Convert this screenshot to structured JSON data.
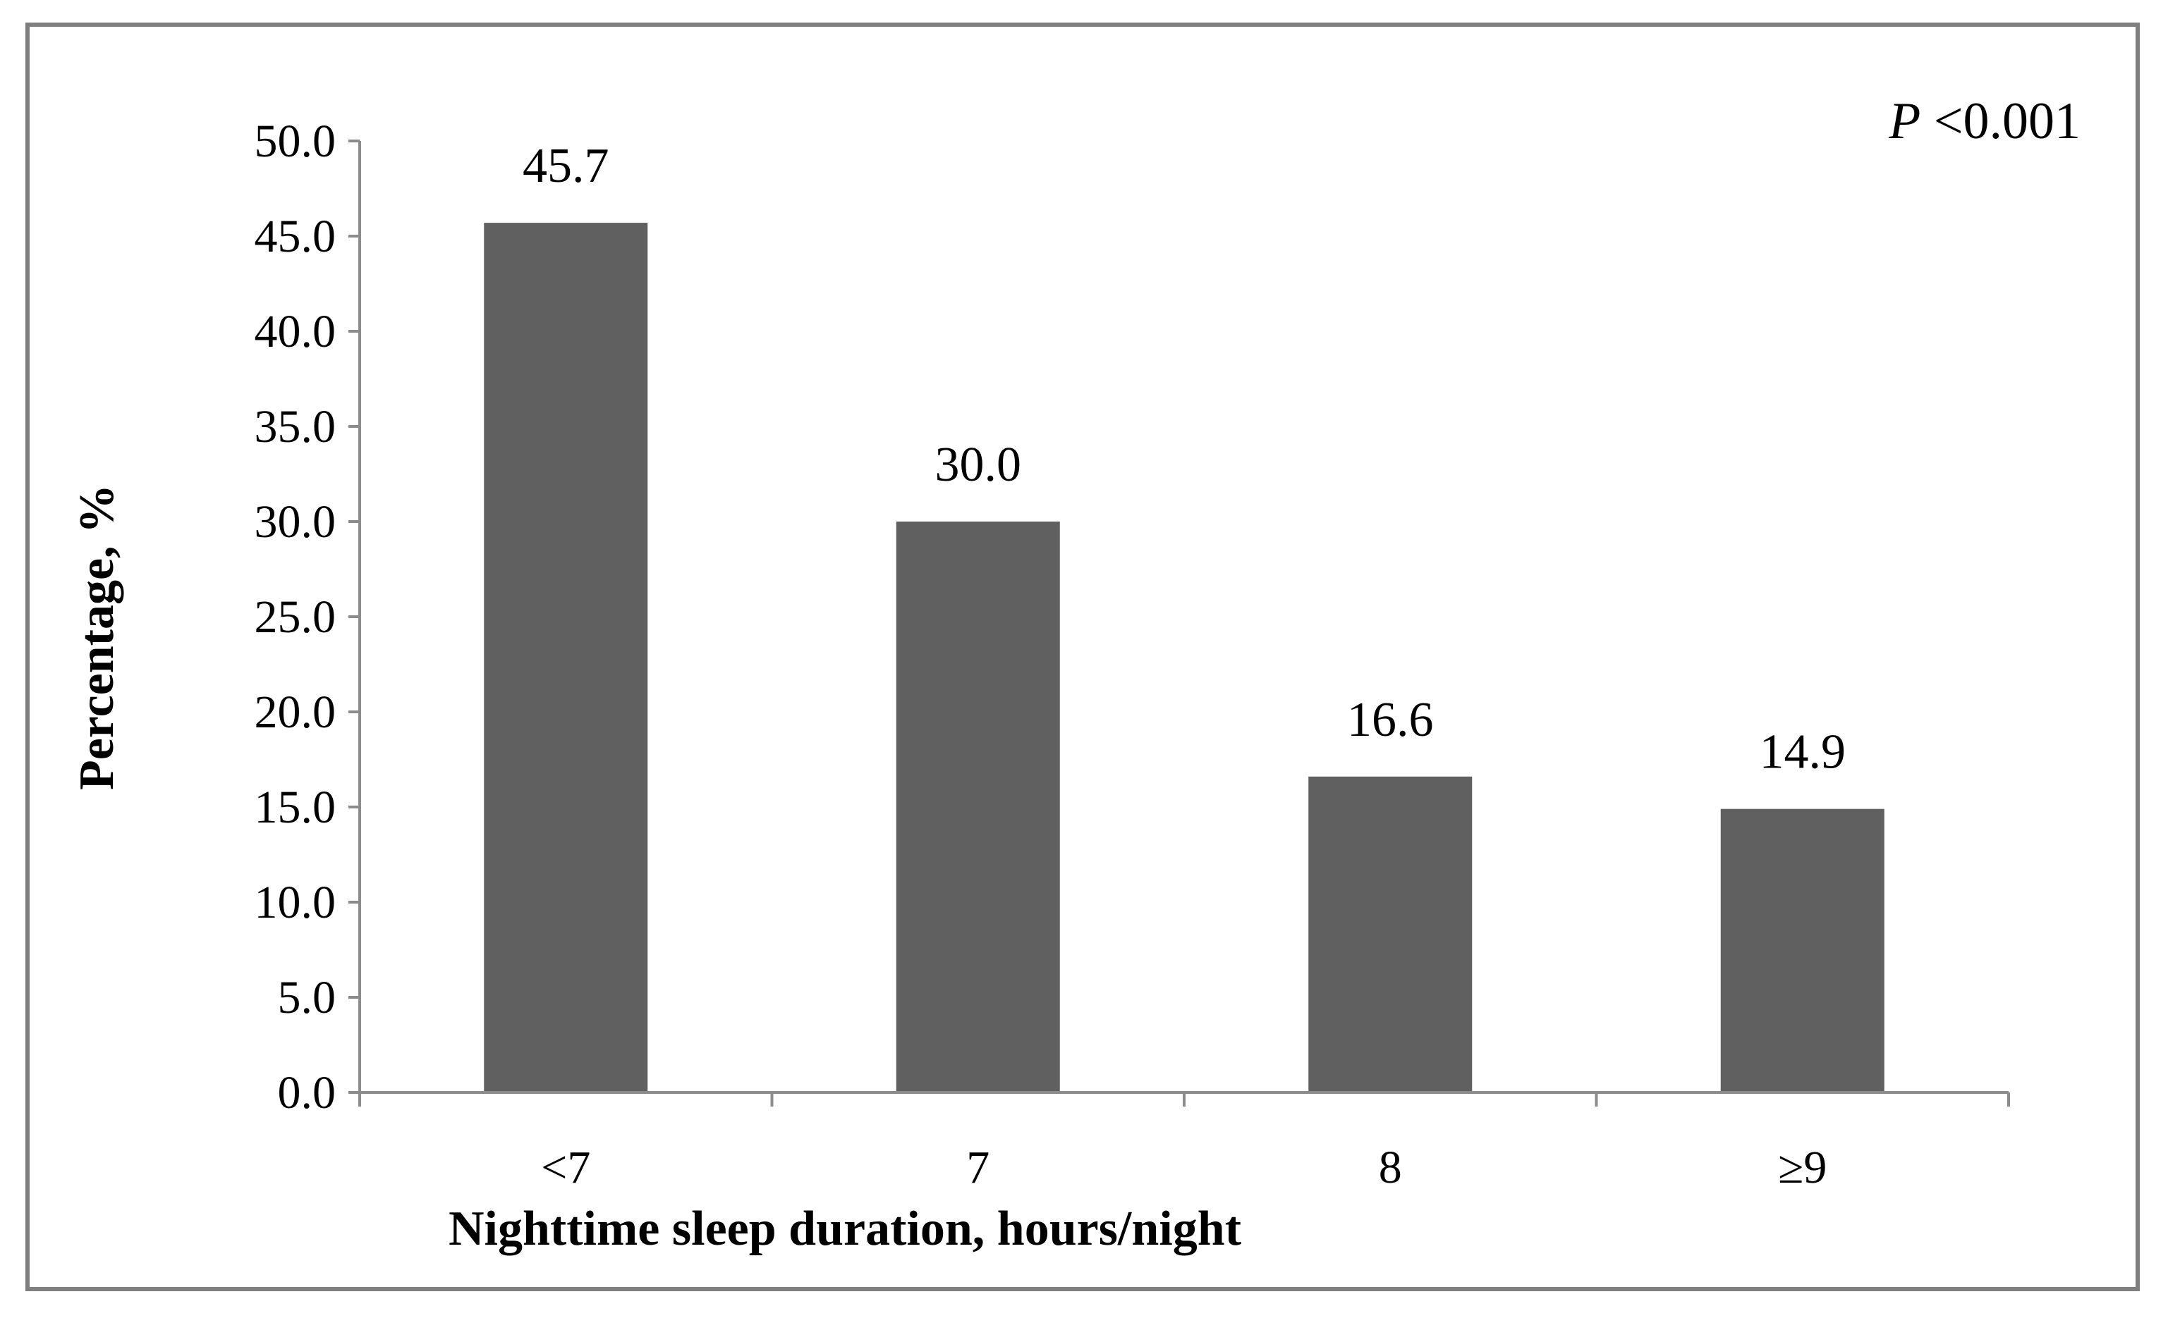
{
  "chart_data": {
    "type": "bar",
    "title": "",
    "categories": [
      "<7",
      "7",
      "8",
      "≥9"
    ],
    "values": [
      45.7,
      30.0,
      16.6,
      14.9
    ],
    "data_labels": [
      "45.7",
      "30.0",
      "16.6",
      "14.9"
    ],
    "xlabel": "Nighttime sleep duration, hours/night",
    "ylabel": "Percentage, %",
    "ylim": [
      0,
      50
    ],
    "yticks": [
      "0.0",
      "5.0",
      "10.0",
      "15.0",
      "20.0",
      "25.0",
      "30.0",
      "35.0",
      "40.0",
      "45.0",
      "50.0"
    ],
    "annotation": {
      "italic": "P",
      "rest": " <0.001"
    },
    "grid": false,
    "legend": "none",
    "bar_color": "#606060"
  }
}
